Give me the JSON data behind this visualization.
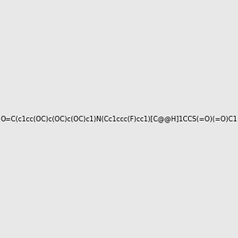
{
  "smiles": "O=C(c1cc(OC)c(OC)c(OC)c1)N(Cc1ccc(F)cc1)[C@@H]1CCS(=O)(=O)C1",
  "image_size": 300,
  "background_color": "#e8e8e8",
  "title": ""
}
